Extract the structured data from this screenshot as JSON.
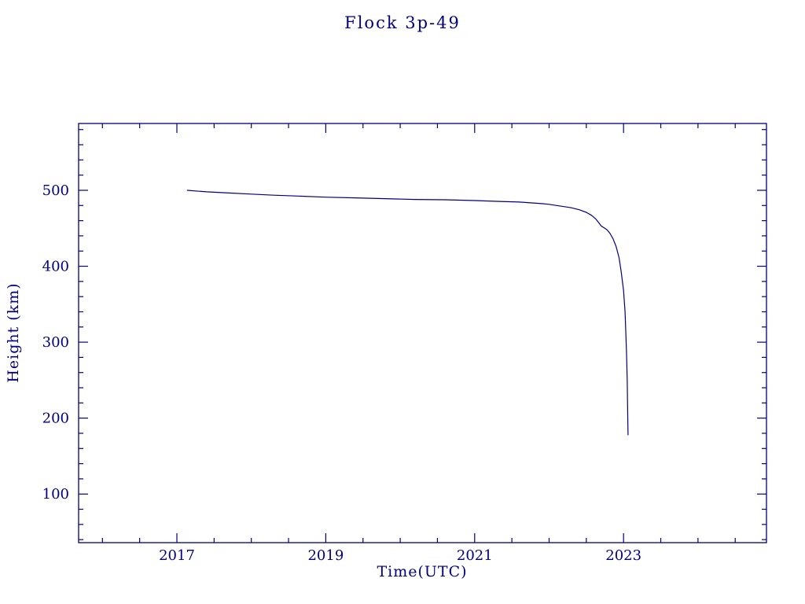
{
  "chart_data": {
    "type": "line",
    "title": "Flock 3p-49",
    "xlabel": "Time(UTC)",
    "ylabel": "Height (km)",
    "xlim": [
      2015.68,
      2024.92
    ],
    "ylim": [
      36,
      588
    ],
    "xticks": [
      2017,
      2019,
      2021,
      2023
    ],
    "x_minor_step": 0.5,
    "yticks": [
      100,
      200,
      300,
      400,
      500
    ],
    "y_minor_step": 20,
    "grid": false,
    "legend": "none",
    "line_color": "#000080",
    "frame_color": "#000080",
    "text_color": "#000080",
    "series": [
      {
        "name": "Flock 3p-49 height",
        "points": [
          [
            2017.14,
            500
          ],
          [
            2017.4,
            498
          ],
          [
            2017.7,
            496.5
          ],
          [
            2018.0,
            495
          ],
          [
            2018.3,
            493.5
          ],
          [
            2018.6,
            492.5
          ],
          [
            2019.0,
            491
          ],
          [
            2019.4,
            490
          ],
          [
            2019.8,
            489
          ],
          [
            2020.2,
            488
          ],
          [
            2020.6,
            487.5
          ],
          [
            2021.0,
            486.5
          ],
          [
            2021.3,
            485.5
          ],
          [
            2021.6,
            484.5
          ],
          [
            2021.9,
            482.5
          ],
          [
            2022.0,
            481.5
          ],
          [
            2022.1,
            480
          ],
          [
            2022.2,
            478.5
          ],
          [
            2022.3,
            477
          ],
          [
            2022.4,
            474.5
          ],
          [
            2022.5,
            471
          ],
          [
            2022.57,
            467
          ],
          [
            2022.63,
            462
          ],
          [
            2022.67,
            457
          ],
          [
            2022.7,
            453
          ],
          [
            2022.74,
            450.5
          ],
          [
            2022.78,
            448
          ],
          [
            2022.82,
            443
          ],
          [
            2022.86,
            436
          ],
          [
            2022.9,
            426
          ],
          [
            2022.94,
            411
          ],
          [
            2022.97,
            392
          ],
          [
            2023.0,
            368
          ],
          [
            2023.02,
            340
          ],
          [
            2023.03,
            315
          ],
          [
            2023.04,
            285
          ],
          [
            2023.05,
            248
          ],
          [
            2023.055,
            210
          ],
          [
            2023.06,
            178
          ]
        ]
      }
    ]
  }
}
